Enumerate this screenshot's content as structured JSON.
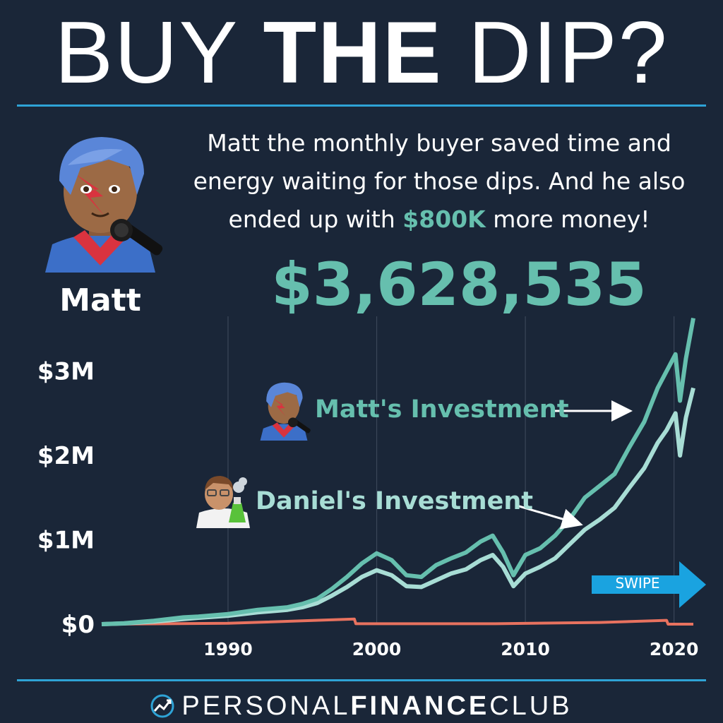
{
  "headline": {
    "word1": "BUY ",
    "word2": "THE",
    "word3": " DIP?"
  },
  "person": {
    "name": "Matt"
  },
  "caption": {
    "text_before": "Matt the monthly buyer saved time and energy waiting for those dips. And he also ended up with ",
    "highlight": "$800K",
    "text_after": " more money!"
  },
  "final_value": "$3,628,535",
  "colors": {
    "background": "#1a2638",
    "accent_teal": "#66bfae",
    "light_teal": "#a8ddd5",
    "rule_blue": "#2ea3d6",
    "swipe_blue": "#1aa3e0",
    "cost_red": "#e8725f"
  },
  "chart_data": {
    "type": "line",
    "ytick_labels": [
      "$0",
      "$1M",
      "$2M",
      "$3M"
    ],
    "ytick_values": [
      0,
      1000000,
      2000000,
      3000000
    ],
    "xtick_labels": [
      "1990",
      "2000",
      "2010",
      "2020"
    ],
    "xtick_values": [
      1990,
      2000,
      2010,
      2020
    ],
    "xlim": [
      1981.5,
      2021.3
    ],
    "ylim": [
      0,
      3650000
    ],
    "grid": "vertical",
    "annotations": [
      {
        "text": "Matt's Investment",
        "arrow": "right"
      },
      {
        "text": "Daniel's Investment",
        "arrow": "down-right"
      }
    ],
    "series": [
      {
        "name": "Matt's Investment",
        "color": "#66bfae",
        "x": [
          1981.5,
          1983,
          1985,
          1987,
          1988,
          1990,
          1992,
          1994,
          1995,
          1996,
          1997,
          1998,
          1999,
          2000,
          2001,
          2002,
          2003,
          2004,
          2005,
          2006,
          2007,
          2007.8,
          2008.5,
          2009.2,
          2010,
          2011,
          2012,
          2013,
          2014,
          2015,
          2016,
          2017,
          2018,
          2018.9,
          2019.5,
          2020.1,
          2020.4,
          2020.8,
          2021.3
        ],
        "y": [
          0,
          10000,
          40000,
          80000,
          90000,
          120000,
          170000,
          200000,
          240000,
          300000,
          420000,
          560000,
          720000,
          840000,
          760000,
          580000,
          560000,
          700000,
          780000,
          850000,
          980000,
          1050000,
          850000,
          580000,
          820000,
          900000,
          1050000,
          1250000,
          1500000,
          1640000,
          1780000,
          2100000,
          2400000,
          2800000,
          3000000,
          3200000,
          2650000,
          3150000,
          3628535
        ]
      },
      {
        "name": "Daniel's Investment",
        "color": "#a8ddd5",
        "x": [
          1981.5,
          1983,
          1985,
          1987,
          1988,
          1990,
          1992,
          1994,
          1995,
          1996,
          1997,
          1998,
          1999,
          2000,
          2001,
          2002,
          2003,
          2004,
          2005,
          2006,
          2007,
          2007.8,
          2008.5,
          2009.2,
          2010,
          2011,
          2012,
          2013,
          2014,
          2015,
          2016,
          2017,
          2018,
          2018.9,
          2019.5,
          2020.1,
          2020.4,
          2020.8,
          2021.3
        ],
        "y": [
          0,
          8000,
          30000,
          60000,
          75000,
          100000,
          140000,
          170000,
          200000,
          250000,
          340000,
          440000,
          560000,
          640000,
          580000,
          450000,
          440000,
          520000,
          600000,
          650000,
          760000,
          820000,
          680000,
          450000,
          600000,
          680000,
          780000,
          950000,
          1120000,
          1240000,
          1380000,
          1620000,
          1850000,
          2150000,
          2300000,
          2500000,
          2000000,
          2450000,
          2800000
        ]
      },
      {
        "name": "",
        "color": "#e8725f",
        "x": [
          1981.5,
          1990,
          1998.5,
          1998.6,
          2008,
          2015,
          2019.5,
          2019.6,
          2021.3
        ],
        "y": [
          0,
          10000,
          60000,
          5000,
          5000,
          20000,
          45000,
          0,
          0
        ]
      }
    ]
  },
  "swipe": {
    "label": "SWIPE"
  },
  "footer": {
    "brand_part1": "PERSONAL",
    "brand_part2": "FINANCE",
    "brand_part3": "CLUB"
  }
}
